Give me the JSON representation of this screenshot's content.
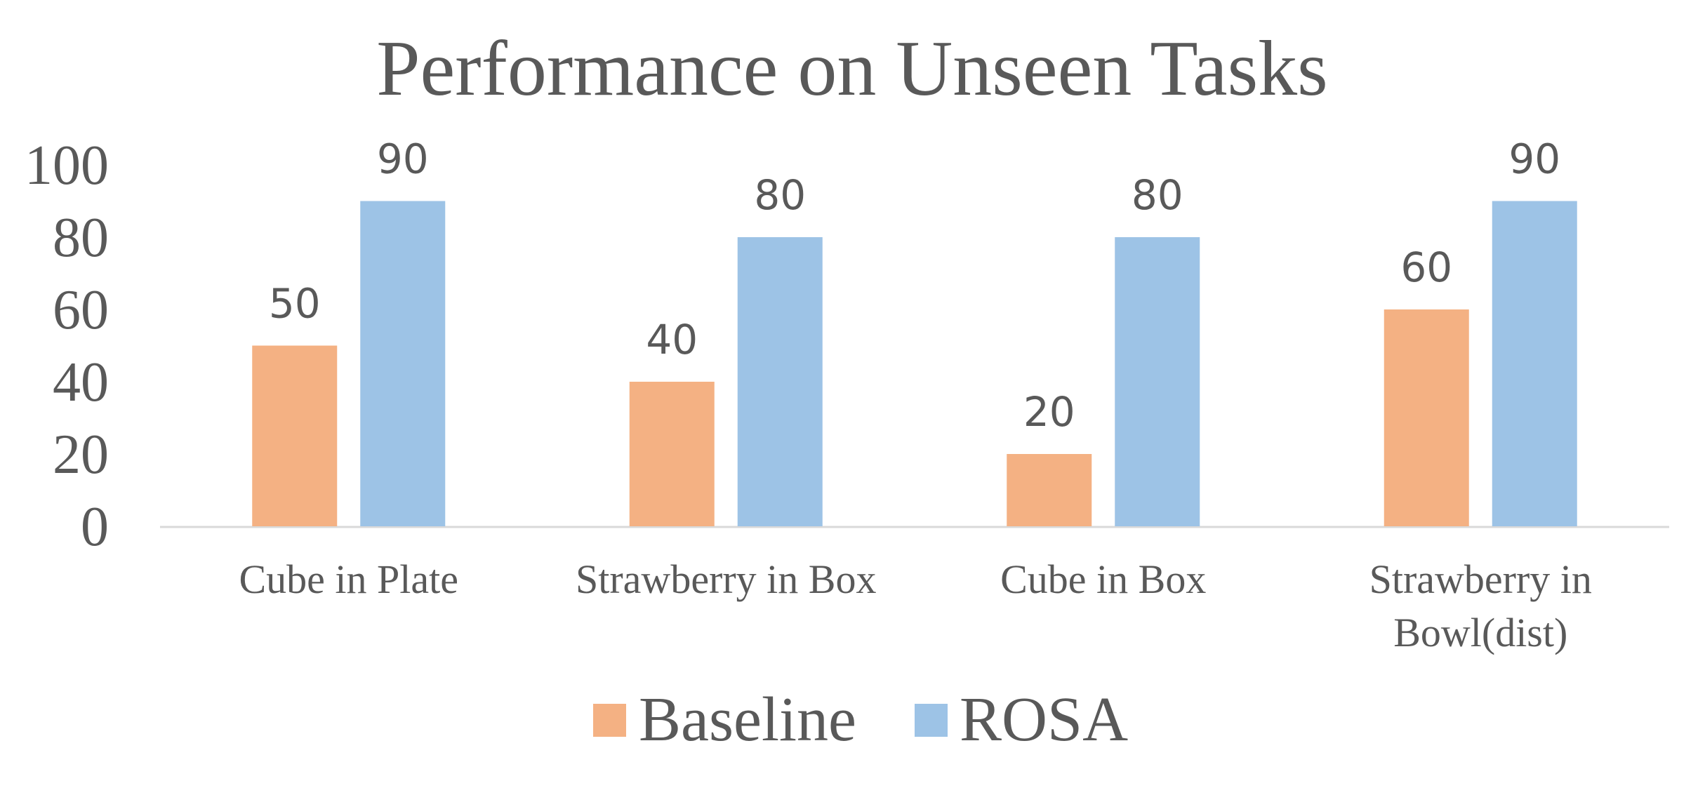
{
  "chart_data": {
    "type": "bar",
    "title": "Performance on Unseen Tasks",
    "categories": [
      "Cube in Plate",
      "Strawberry in Box",
      "Cube in Box",
      "Strawberry in Bowl(dist)"
    ],
    "category_lines": [
      [
        "Cube in Plate"
      ],
      [
        "Strawberry in Box"
      ],
      [
        "Cube in Box"
      ],
      [
        "Strawberry in",
        "Bowl(dist)"
      ]
    ],
    "series": [
      {
        "name": "Baseline",
        "values": [
          50,
          40,
          20,
          60
        ],
        "color": "#F4B183"
      },
      {
        "name": "ROSA",
        "values": [
          90,
          80,
          80,
          90
        ],
        "color": "#9DC3E6"
      }
    ],
    "ylim": [
      0,
      100
    ],
    "yticks": [
      0,
      20,
      40,
      60,
      80,
      100
    ],
    "xlabel": "",
    "ylabel": "",
    "grid": false,
    "data_labels": true,
    "legend_position": "bottom",
    "axis_color": "#D9D9D9",
    "text_color": "#595959"
  }
}
